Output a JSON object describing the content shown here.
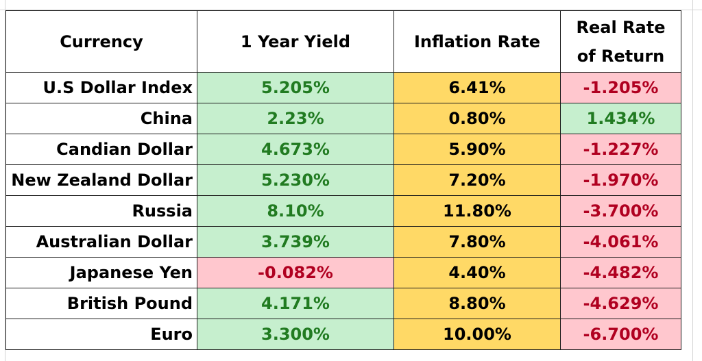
{
  "headers": {
    "currency": "Currency",
    "yield": "1 Year Yield",
    "inflation": "Inflation Rate",
    "real_line1": "Real Rate",
    "real_line2": "of Return"
  },
  "colors": {
    "positive_fill": "#c6efce",
    "positive_text": "#217b21",
    "negative_fill": "#ffc7ce",
    "negative_text": "#b00020",
    "inflation_fill": "#ffd966"
  },
  "rows": [
    {
      "currency": "U.S Dollar Index",
      "yield": "5.205%",
      "yield_sign": "positive",
      "inflation": "6.41%",
      "real": "-1.205%",
      "real_sign": "negative"
    },
    {
      "currency": "China",
      "yield": "2.23%",
      "yield_sign": "positive",
      "inflation": "0.80%",
      "real": "1.434%",
      "real_sign": "positive"
    },
    {
      "currency": "Candian Dollar",
      "yield": "4.673%",
      "yield_sign": "positive",
      "inflation": "5.90%",
      "real": "-1.227%",
      "real_sign": "negative"
    },
    {
      "currency": "New Zealand Dollar",
      "yield": "5.230%",
      "yield_sign": "positive",
      "inflation": "7.20%",
      "real": "-1.970%",
      "real_sign": "negative"
    },
    {
      "currency": "Russia",
      "yield": "8.10%",
      "yield_sign": "positive",
      "inflation": "11.80%",
      "real": "-3.700%",
      "real_sign": "negative"
    },
    {
      "currency": "Australian Dollar",
      "yield": "3.739%",
      "yield_sign": "positive",
      "inflation": "7.80%",
      "real": "-4.061%",
      "real_sign": "negative"
    },
    {
      "currency": "Japanese Yen",
      "yield": "-0.082%",
      "yield_sign": "negative",
      "inflation": "4.40%",
      "real": "-4.482%",
      "real_sign": "negative"
    },
    {
      "currency": "British Pound",
      "yield": "4.171%",
      "yield_sign": "positive",
      "inflation": "8.80%",
      "real": "-4.629%",
      "real_sign": "negative"
    },
    {
      "currency": "Euro",
      "yield": "3.300%",
      "yield_sign": "positive",
      "inflation": "10.00%",
      "real": "-6.700%",
      "real_sign": "negative"
    }
  ]
}
